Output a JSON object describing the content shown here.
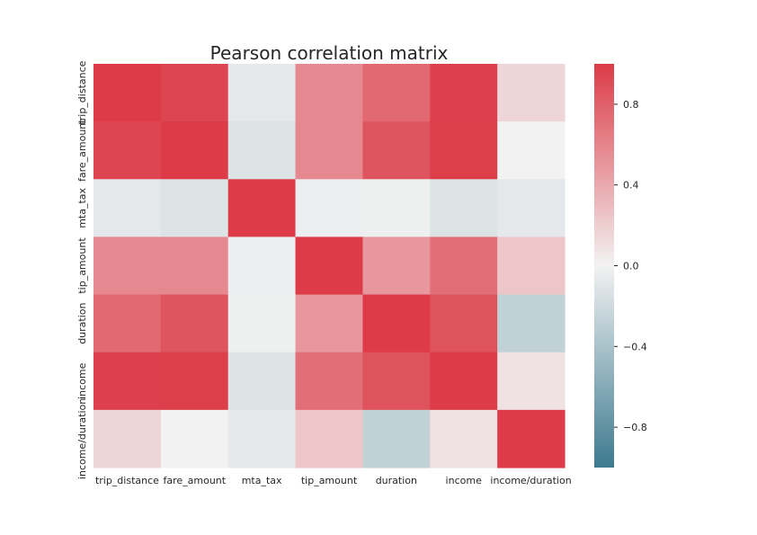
{
  "chart_data": {
    "type": "heatmap",
    "title": "Pearson correlation matrix",
    "xlabel": "",
    "ylabel": "",
    "x_categories": [
      "trip_distance",
      "fare_amount",
      "mta_tax",
      "tip_amount",
      "duration",
      "income",
      "income/duration"
    ],
    "y_categories": [
      "trip_distance",
      "fare_amount",
      "mta_tax",
      "tip_amount",
      "duration",
      "income",
      "income/duration"
    ],
    "values": [
      [
        1.0,
        0.94,
        -0.08,
        0.58,
        0.75,
        0.97,
        0.16
      ],
      [
        0.94,
        1.0,
        -0.12,
        0.58,
        0.86,
        0.98,
        0.0
      ],
      [
        -0.08,
        -0.12,
        1.0,
        -0.03,
        -0.02,
        -0.12,
        -0.08
      ],
      [
        0.58,
        0.58,
        -0.03,
        1.0,
        0.5,
        0.72,
        0.24
      ],
      [
        0.75,
        0.86,
        -0.02,
        0.5,
        1.0,
        0.87,
        -0.27
      ],
      [
        0.97,
        0.98,
        -0.12,
        0.72,
        0.87,
        1.0,
        0.09
      ],
      [
        0.16,
        0.0,
        -0.08,
        0.24,
        -0.27,
        0.09,
        1.0
      ]
    ],
    "colorbar": {
      "range": [
        -1,
        1
      ],
      "ticks": [
        -0.8,
        -0.4,
        0.0,
        0.4,
        0.8
      ],
      "tick_labels": [
        "−0.8",
        "−0.4",
        "0.0",
        "0.4",
        "0.8"
      ]
    },
    "colors": {
      "negative": "#3d7a8f",
      "neutral": "#f2f2f2",
      "positive": "#dc3b47"
    },
    "grid": false,
    "legend": "colorbar-right"
  }
}
